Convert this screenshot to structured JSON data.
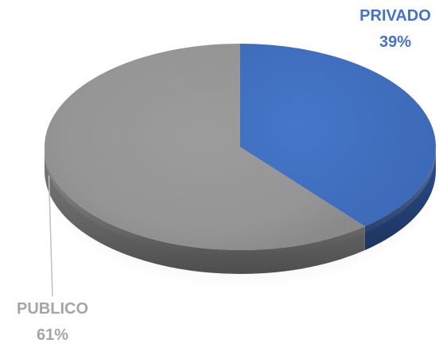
{
  "chart_data": {
    "type": "pie",
    "style": "3d",
    "legend": "none",
    "slices": [
      {
        "name": "PRIVADO",
        "value": 39,
        "label": "39%",
        "color": "#4472C4"
      },
      {
        "name": "PUBLICO",
        "value": 61,
        "label": "61%",
        "color": "#A5A5A5"
      }
    ]
  }
}
